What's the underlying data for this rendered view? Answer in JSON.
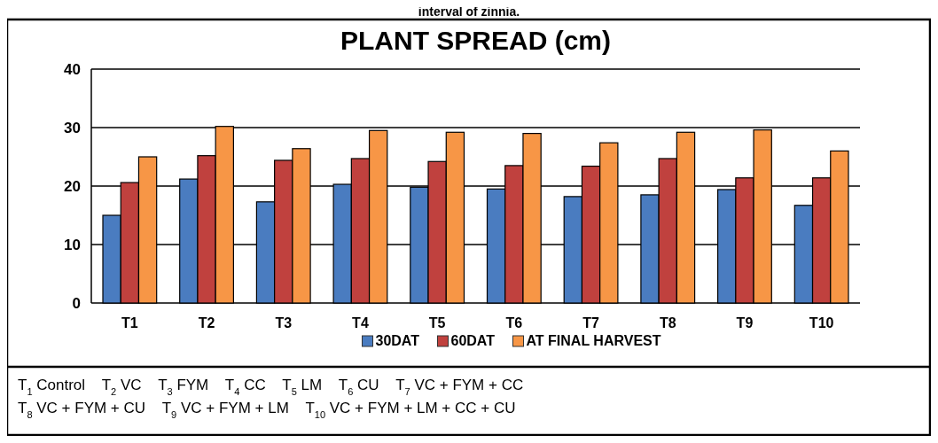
{
  "chart_data": {
    "type": "bar",
    "title": "PLANT SPREAD (cm)",
    "categories": [
      "T1",
      "T2",
      "T3",
      "T4",
      "T5",
      "T6",
      "T7",
      "T8",
      "T9",
      "T10"
    ],
    "series": [
      {
        "name": "30DAT",
        "color": "#4a7cc0",
        "values": [
          15.0,
          21.2,
          17.3,
          20.3,
          19.8,
          19.5,
          18.2,
          18.5,
          19.4,
          16.7
        ]
      },
      {
        "name": "60DAT",
        "color": "#c0413e",
        "values": [
          20.6,
          25.2,
          24.4,
          24.7,
          24.2,
          23.5,
          23.4,
          24.7,
          21.4,
          21.4
        ]
      },
      {
        "name": "AT FINAL HARVEST",
        "color": "#f79646",
        "values": [
          25.0,
          30.2,
          26.4,
          29.5,
          29.2,
          29.0,
          27.4,
          29.2,
          29.6,
          26.0
        ]
      }
    ],
    "ylim": [
      0,
      40
    ],
    "yticks": [
      0,
      10,
      20,
      30,
      40
    ],
    "grid": "y",
    "legend": "bottom",
    "annotations": [
      "interval of zinnia.",
      "T$_{1}$ Control    T$_{2}$ VC    T$_{3}$ FYM    T$_{4}$ CC    T$_{5}$ LM    T$_{6}$ CU    T$_{7}$ VC + FYM + CC",
      "T$_{8}$ VC + FYM + CU    T$_{9}$ VC + FYM + LM    T$_{10}$ VC + FYM + LM + CC + CU"
    ]
  }
}
